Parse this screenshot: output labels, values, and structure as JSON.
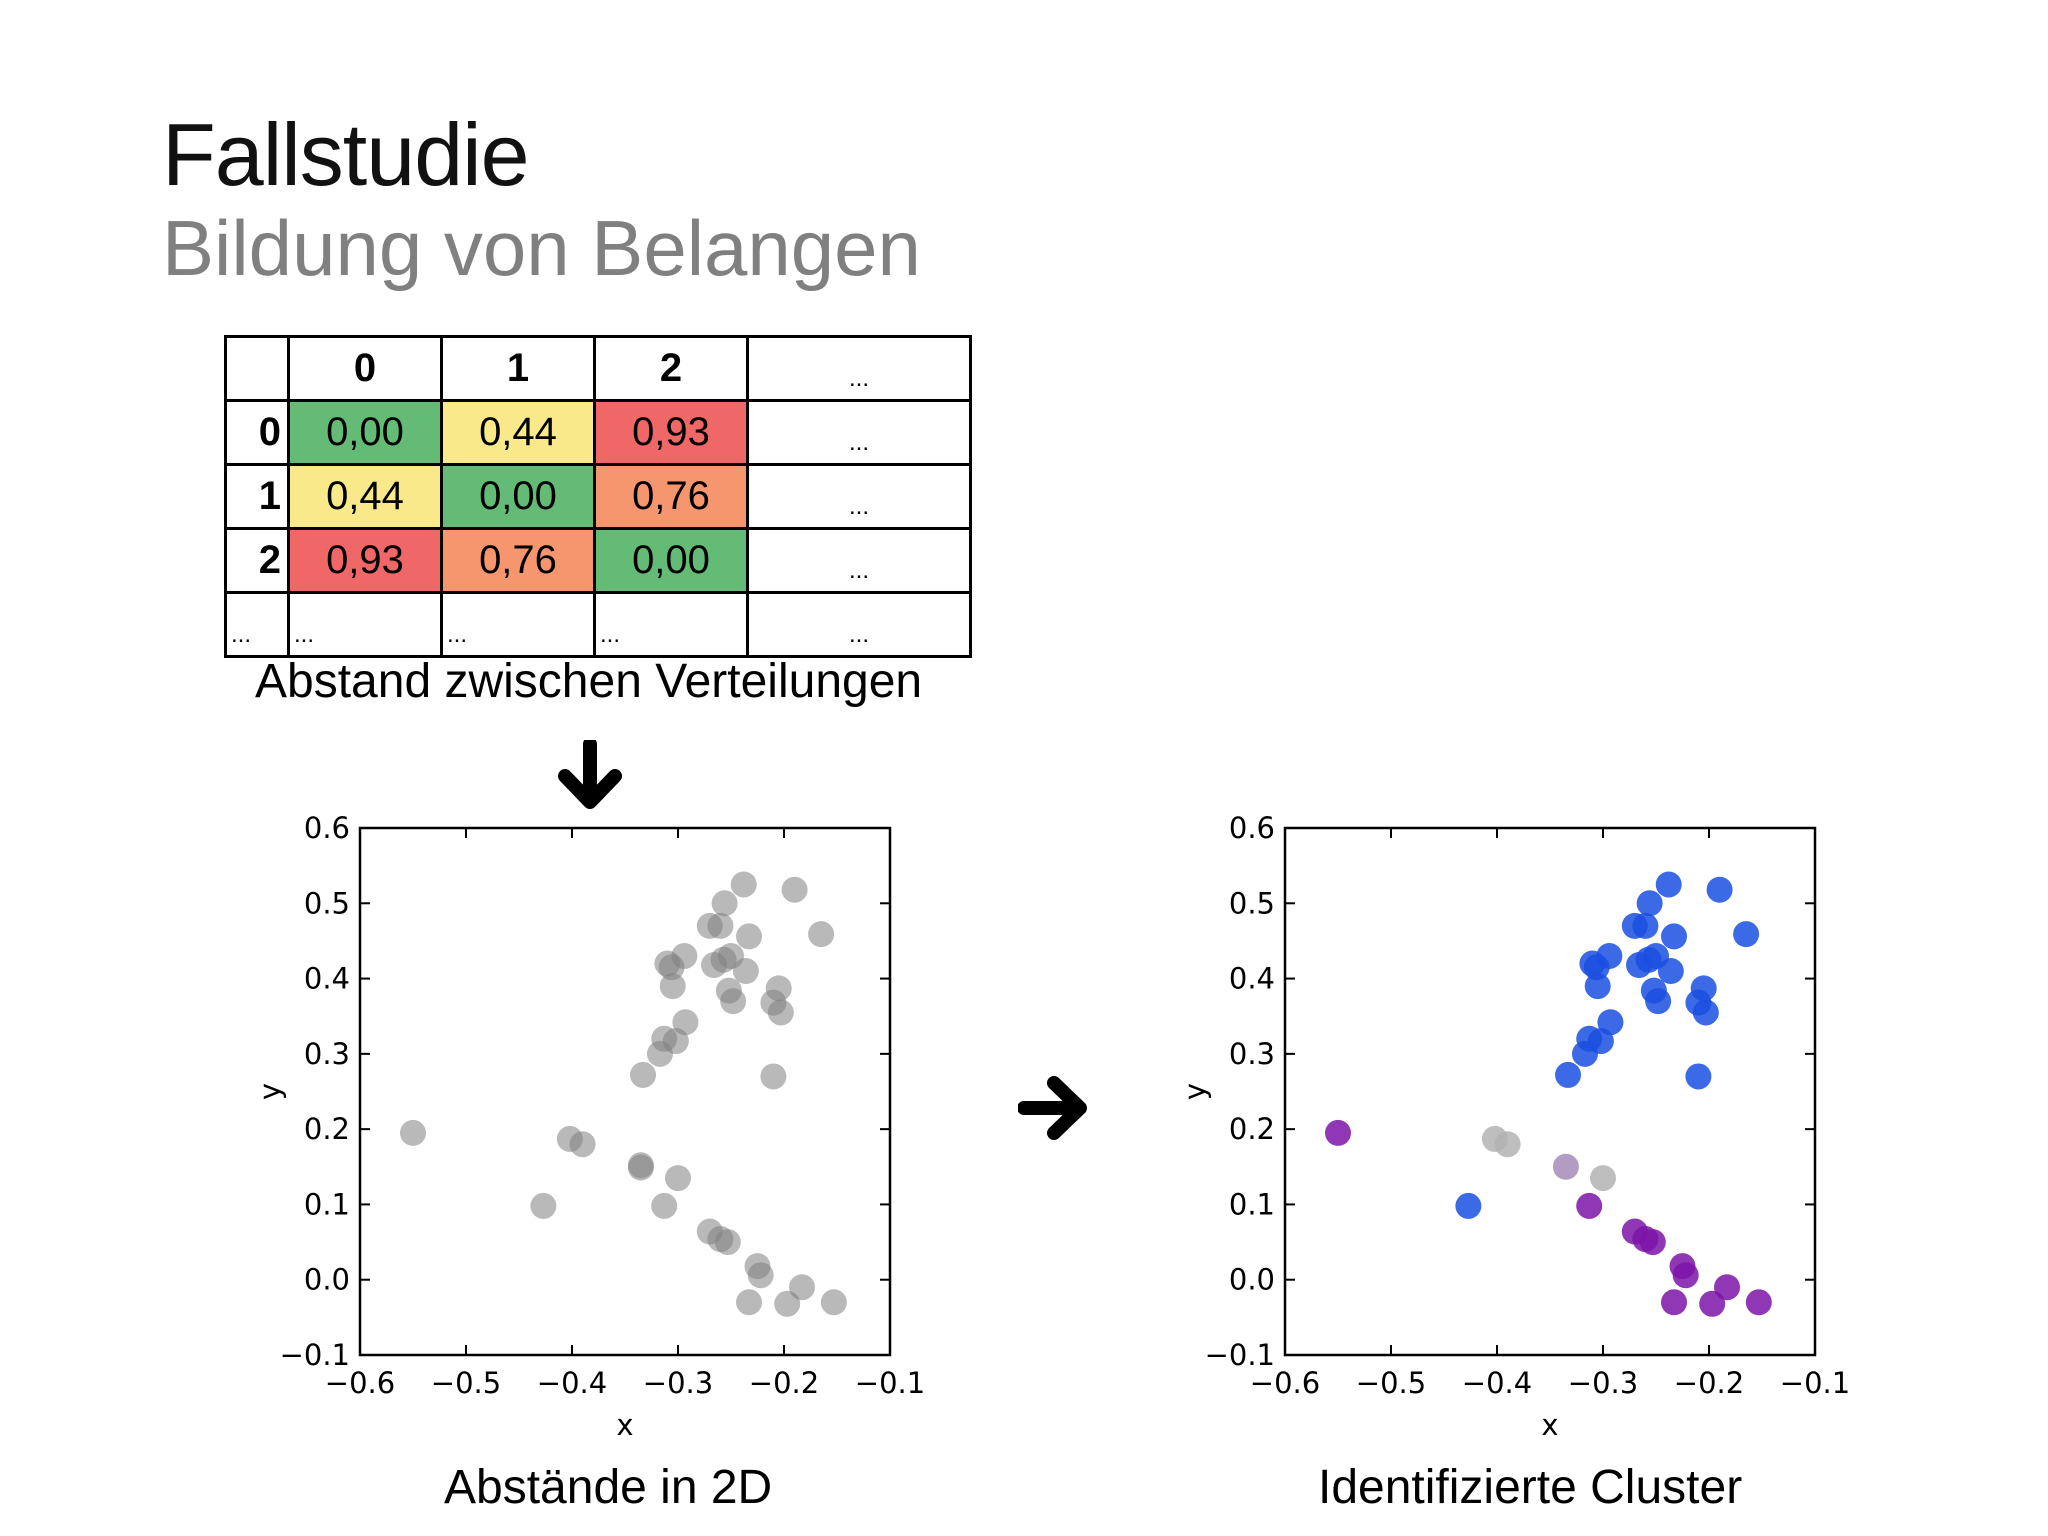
{
  "slide": {
    "title": "Fallstudie",
    "subtitle": "Bildung von Belangen"
  },
  "matrix": {
    "corner": "",
    "headers": [
      "0",
      "1",
      "2",
      "..."
    ],
    "rows": [
      {
        "label": "0",
        "cells": [
          {
            "value": "0,00",
            "color": "#64bb76"
          },
          {
            "value": "0,44",
            "color": "#f9e98a"
          },
          {
            "value": "0,93",
            "color": "#ef6767"
          },
          {
            "value": "...",
            "color": "#ffffff"
          }
        ]
      },
      {
        "label": "1",
        "cells": [
          {
            "value": "0,44",
            "color": "#f9e98a"
          },
          {
            "value": "0,00",
            "color": "#64bb76"
          },
          {
            "value": "0,76",
            "color": "#f6966f"
          },
          {
            "value": "...",
            "color": "#ffffff"
          }
        ]
      },
      {
        "label": "2",
        "cells": [
          {
            "value": "0,93",
            "color": "#ef6767"
          },
          {
            "value": "0,76",
            "color": "#f6966f"
          },
          {
            "value": "0,00",
            "color": "#64bb76"
          },
          {
            "value": "...",
            "color": "#ffffff"
          }
        ]
      },
      {
        "label": "...",
        "cells": [
          {
            "value": "...",
            "color": "#ffffff"
          },
          {
            "value": "...",
            "color": "#ffffff"
          },
          {
            "value": "...",
            "color": "#ffffff"
          },
          {
            "value": "...",
            "color": "#ffffff"
          }
        ]
      }
    ],
    "caption": "Abstand zwischen Verteilungen"
  },
  "arrows": {
    "down": "arrow-down-icon",
    "right": "arrow-right-icon"
  },
  "chart_data": [
    {
      "type": "scatter",
      "caption": "Abstände in 2D",
      "xlabel": "x",
      "ylabel": "y",
      "xlim": [
        -0.6,
        -0.1
      ],
      "ylim": [
        -0.1,
        0.6
      ],
      "xticks": [
        -0.6,
        -0.5,
        -0.4,
        -0.3,
        -0.2,
        -0.1
      ],
      "yticks": [
        -0.1,
        0.0,
        0.1,
        0.2,
        0.3,
        0.4,
        0.5,
        0.6
      ],
      "xtick_labels": [
        "−0.6",
        "−0.5",
        "−0.4",
        "−0.3",
        "−0.2",
        "−0.1"
      ],
      "ytick_labels": [
        "−0.1",
        "0.0",
        "0.1",
        "0.2",
        "0.3",
        "0.4",
        "0.5",
        "0.6"
      ],
      "grid": false,
      "point_color": "#808080",
      "points": [
        {
          "x": -0.55,
          "y": 0.195
        },
        {
          "x": -0.402,
          "y": 0.187
        },
        {
          "x": -0.39,
          "y": 0.18
        },
        {
          "x": -0.427,
          "y": 0.098
        },
        {
          "x": -0.335,
          "y": 0.152
        },
        {
          "x": -0.335,
          "y": 0.149
        },
        {
          "x": -0.3,
          "y": 0.135
        },
        {
          "x": -0.313,
          "y": 0.098
        },
        {
          "x": -0.27,
          "y": 0.064
        },
        {
          "x": -0.26,
          "y": 0.054
        },
        {
          "x": -0.253,
          "y": 0.05
        },
        {
          "x": -0.225,
          "y": 0.018
        },
        {
          "x": -0.222,
          "y": 0.006
        },
        {
          "x": -0.233,
          "y": -0.03
        },
        {
          "x": -0.183,
          "y": -0.01
        },
        {
          "x": -0.197,
          "y": -0.032
        },
        {
          "x": -0.153,
          "y": -0.03
        },
        {
          "x": -0.333,
          "y": 0.272
        },
        {
          "x": -0.317,
          "y": 0.3
        },
        {
          "x": -0.313,
          "y": 0.32
        },
        {
          "x": -0.302,
          "y": 0.317
        },
        {
          "x": -0.293,
          "y": 0.342
        },
        {
          "x": -0.305,
          "y": 0.39
        },
        {
          "x": -0.31,
          "y": 0.42
        },
        {
          "x": -0.306,
          "y": 0.415
        },
        {
          "x": -0.294,
          "y": 0.43
        },
        {
          "x": -0.266,
          "y": 0.418
        },
        {
          "x": -0.257,
          "y": 0.425
        },
        {
          "x": -0.252,
          "y": 0.384
        },
        {
          "x": -0.248,
          "y": 0.37
        },
        {
          "x": -0.236,
          "y": 0.41
        },
        {
          "x": -0.27,
          "y": 0.47
        },
        {
          "x": -0.26,
          "y": 0.47
        },
        {
          "x": -0.256,
          "y": 0.5
        },
        {
          "x": -0.238,
          "y": 0.525
        },
        {
          "x": -0.233,
          "y": 0.456
        },
        {
          "x": -0.25,
          "y": 0.43
        },
        {
          "x": -0.19,
          "y": 0.518
        },
        {
          "x": -0.165,
          "y": 0.459
        },
        {
          "x": -0.205,
          "y": 0.387
        },
        {
          "x": -0.21,
          "y": 0.368
        },
        {
          "x": -0.203,
          "y": 0.355
        },
        {
          "x": -0.21,
          "y": 0.27
        }
      ]
    },
    {
      "type": "scatter",
      "caption": "Identifizierte Cluster",
      "xlabel": "x",
      "ylabel": "y",
      "xlim": [
        -0.6,
        -0.1
      ],
      "ylim": [
        -0.1,
        0.6
      ],
      "xticks": [
        -0.6,
        -0.5,
        -0.4,
        -0.3,
        -0.2,
        -0.1
      ],
      "yticks": [
        -0.1,
        0.0,
        0.1,
        0.2,
        0.3,
        0.4,
        0.5,
        0.6
      ],
      "xtick_labels": [
        "−0.6",
        "−0.5",
        "−0.4",
        "−0.3",
        "−0.2",
        "−0.1"
      ],
      "ytick_labels": [
        "−0.1",
        "0.0",
        "0.1",
        "0.2",
        "0.3",
        "0.4",
        "0.5",
        "0.6"
      ],
      "grid": false,
      "clusters": [
        {
          "color": "#1a4fe0",
          "points": [
            {
              "x": -0.427,
              "y": 0.098
            },
            {
              "x": -0.333,
              "y": 0.272
            },
            {
              "x": -0.317,
              "y": 0.3
            },
            {
              "x": -0.313,
              "y": 0.32
            },
            {
              "x": -0.302,
              "y": 0.317
            },
            {
              "x": -0.293,
              "y": 0.342
            },
            {
              "x": -0.305,
              "y": 0.39
            },
            {
              "x": -0.31,
              "y": 0.42
            },
            {
              "x": -0.306,
              "y": 0.415
            },
            {
              "x": -0.294,
              "y": 0.43
            },
            {
              "x": -0.266,
              "y": 0.418
            },
            {
              "x": -0.257,
              "y": 0.425
            },
            {
              "x": -0.252,
              "y": 0.384
            },
            {
              "x": -0.248,
              "y": 0.37
            },
            {
              "x": -0.236,
              "y": 0.41
            },
            {
              "x": -0.27,
              "y": 0.47
            },
            {
              "x": -0.26,
              "y": 0.47
            },
            {
              "x": -0.256,
              "y": 0.5
            },
            {
              "x": -0.238,
              "y": 0.525
            },
            {
              "x": -0.233,
              "y": 0.456
            },
            {
              "x": -0.25,
              "y": 0.43
            },
            {
              "x": -0.19,
              "y": 0.518
            },
            {
              "x": -0.165,
              "y": 0.459
            },
            {
              "x": -0.205,
              "y": 0.387
            },
            {
              "x": -0.21,
              "y": 0.368
            },
            {
              "x": -0.203,
              "y": 0.355
            },
            {
              "x": -0.21,
              "y": 0.27
            }
          ]
        },
        {
          "color": "#7d14a8",
          "points": [
            {
              "x": -0.55,
              "y": 0.195
            },
            {
              "x": -0.313,
              "y": 0.098
            },
            {
              "x": -0.27,
              "y": 0.064
            },
            {
              "x": -0.26,
              "y": 0.054
            },
            {
              "x": -0.253,
              "y": 0.05
            },
            {
              "x": -0.225,
              "y": 0.018
            },
            {
              "x": -0.222,
              "y": 0.006
            },
            {
              "x": -0.233,
              "y": -0.03
            },
            {
              "x": -0.183,
              "y": -0.01
            },
            {
              "x": -0.197,
              "y": -0.032
            },
            {
              "x": -0.153,
              "y": -0.03
            }
          ]
        },
        {
          "color": "#b3b3b3",
          "points": [
            {
              "x": -0.402,
              "y": 0.187
            },
            {
              "x": -0.39,
              "y": 0.18
            },
            {
              "x": -0.3,
              "y": 0.135
            }
          ]
        },
        {
          "color": "#a58bb6",
          "points": [
            {
              "x": -0.335,
              "y": 0.15
            }
          ]
        }
      ]
    }
  ]
}
